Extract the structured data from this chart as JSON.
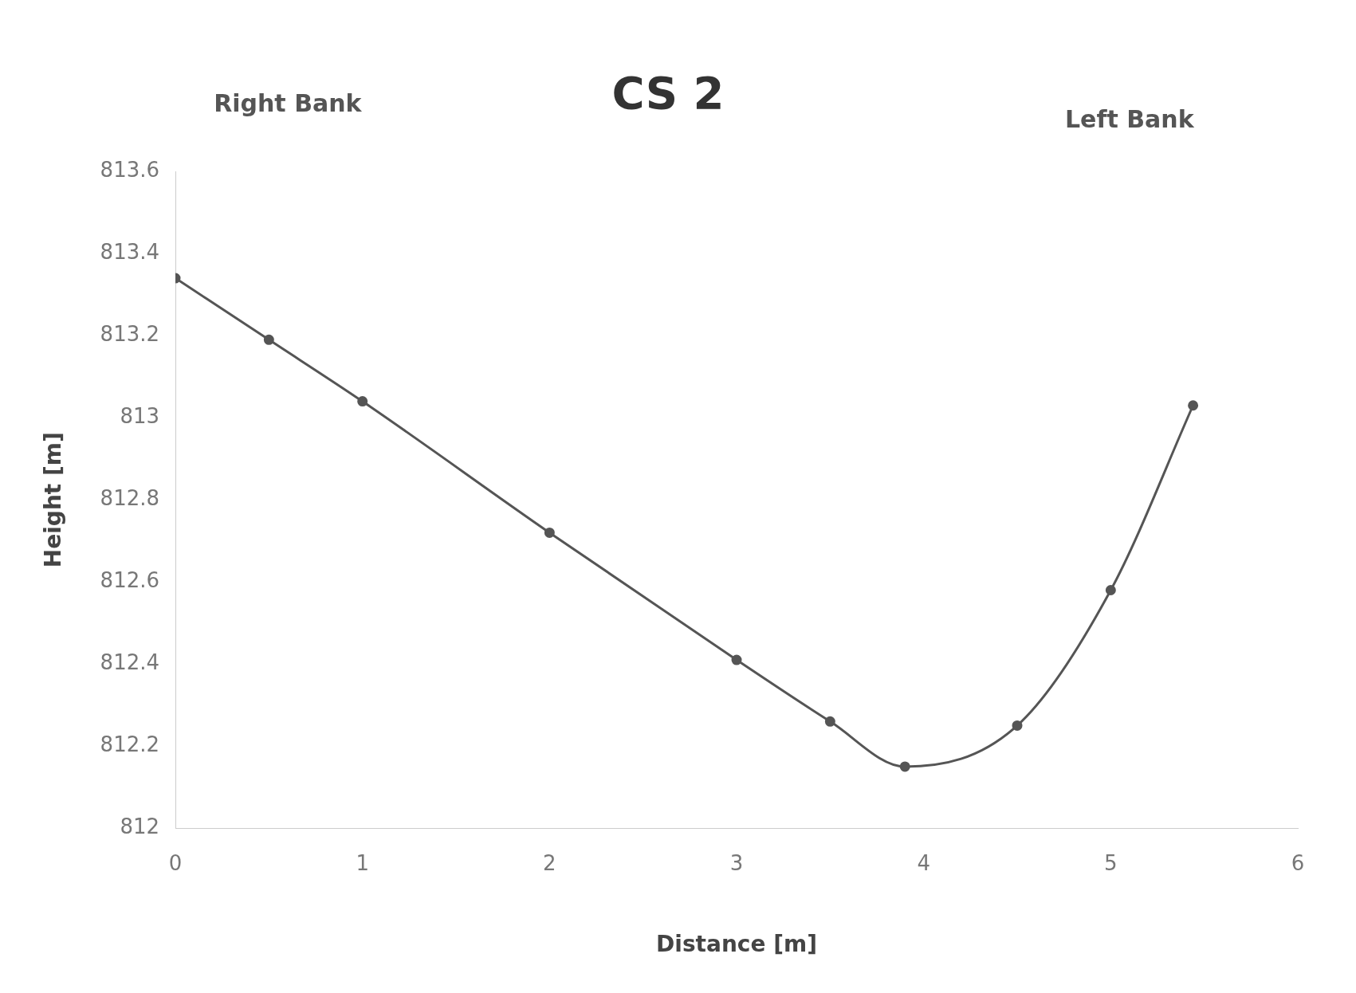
{
  "chart_data": {
    "type": "line",
    "title": "CS 2",
    "xlabel": "Distance [m]",
    "ylabel": "Height [m]",
    "annotations": [
      "Right Bank",
      "Left Bank"
    ],
    "x": [
      0,
      0.5,
      1,
      2,
      3,
      3.5,
      3.9,
      4.5,
      5,
      5.44
    ],
    "series": [
      {
        "color": "#555555",
        "values": [
          813.34,
          813.19,
          813.04,
          812.72,
          812.41,
          812.26,
          812.15,
          812.25,
          812.58,
          813.03
        ]
      }
    ],
    "xlim": [
      0,
      6
    ],
    "xticks": [
      0,
      1,
      2,
      3,
      4,
      5,
      6
    ],
    "ylim": [
      812,
      813.6
    ],
    "yticks": [
      812,
      812.2,
      812.4,
      812.6,
      812.8,
      813,
      813.2,
      813.4,
      813.6
    ],
    "grid": false,
    "legend": false,
    "marker": "circle",
    "line_style": "solid"
  }
}
